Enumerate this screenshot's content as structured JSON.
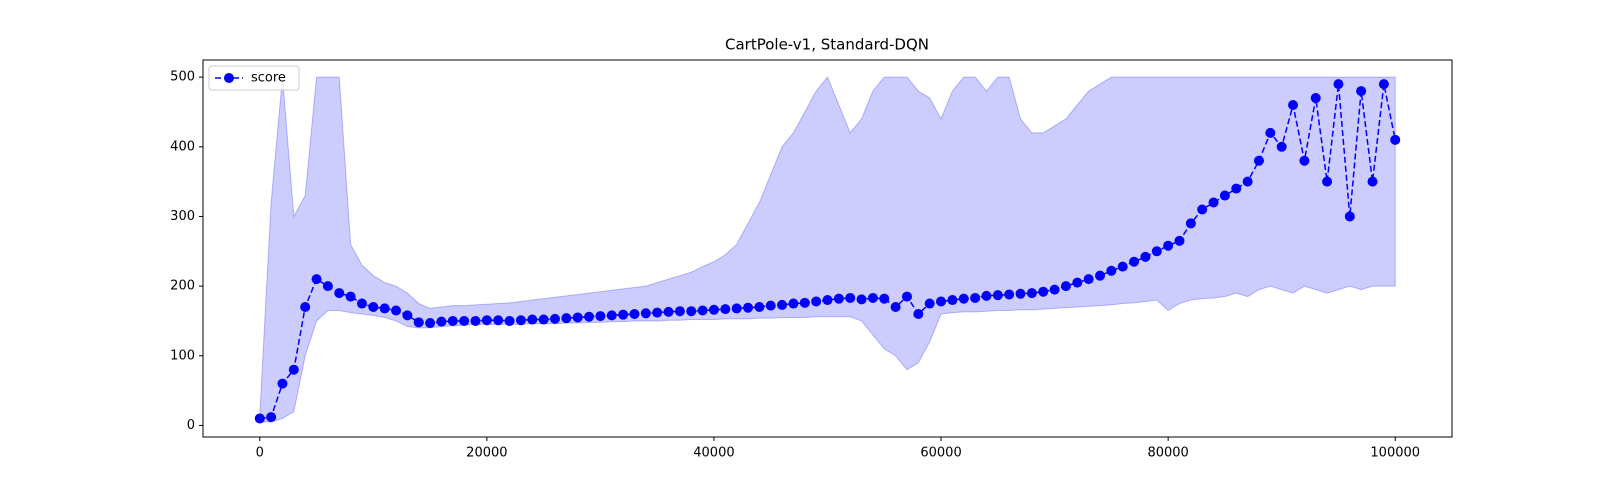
{
  "chart_data": {
    "type": "line",
    "title": "CartPole-v1, Standard-DQN",
    "x": [
      0,
      1000,
      2000,
      3000,
      4000,
      5000,
      6000,
      7000,
      8000,
      9000,
      10000,
      11000,
      12000,
      13000,
      14000,
      15000,
      16000,
      17000,
      18000,
      19000,
      20000,
      21000,
      22000,
      23000,
      24000,
      25000,
      26000,
      27000,
      28000,
      29000,
      30000,
      31000,
      32000,
      33000,
      34000,
      35000,
      36000,
      37000,
      38000,
      39000,
      40000,
      41000,
      42000,
      43000,
      44000,
      45000,
      46000,
      47000,
      48000,
      49000,
      50000,
      51000,
      52000,
      53000,
      54000,
      55000,
      56000,
      57000,
      58000,
      59000,
      60000,
      61000,
      62000,
      63000,
      64000,
      65000,
      66000,
      67000,
      68000,
      69000,
      70000,
      71000,
      72000,
      73000,
      74000,
      75000,
      76000,
      77000,
      78000,
      79000,
      80000,
      81000,
      82000,
      83000,
      84000,
      85000,
      86000,
      87000,
      88000,
      89000,
      90000,
      91000,
      92000,
      93000,
      94000,
      95000,
      96000,
      97000,
      98000,
      99000,
      100000
    ],
    "series": [
      {
        "name": "score",
        "color": "#0000ff",
        "values": [
          10,
          12,
          60,
          80,
          170,
          210,
          200,
          190,
          185,
          175,
          170,
          168,
          165,
          158,
          148,
          147,
          149,
          150,
          150,
          150,
          151,
          151,
          150,
          151,
          152,
          152,
          153,
          154,
          155,
          156,
          157,
          158,
          159,
          160,
          161,
          162,
          163,
          164,
          164,
          165,
          166,
          167,
          168,
          169,
          170,
          172,
          173,
          175,
          176,
          178,
          180,
          182,
          183,
          181,
          183,
          182,
          170,
          185,
          160,
          175,
          178,
          180,
          182,
          183,
          186,
          187,
          188,
          189,
          190,
          192,
          195,
          200,
          205,
          210,
          215,
          222,
          228,
          235,
          242,
          250,
          258,
          265,
          290,
          310,
          320,
          330,
          340,
          350,
          380,
          420,
          400,
          460,
          380,
          470,
          350,
          490,
          300,
          480,
          350,
          490,
          410
        ]
      }
    ],
    "band": {
      "color": "#0000ff",
      "lower": [
        5,
        5,
        10,
        20,
        100,
        150,
        165,
        165,
        162,
        160,
        158,
        155,
        150,
        142,
        140,
        140,
        142,
        143,
        144,
        145,
        145,
        145,
        145,
        145,
        146,
        146,
        146,
        147,
        147,
        148,
        148,
        149,
        149,
        150,
        150,
        150,
        151,
        151,
        152,
        152,
        152,
        153,
        153,
        153,
        154,
        154,
        155,
        155,
        155,
        156,
        156,
        156,
        156,
        150,
        130,
        110,
        100,
        80,
        90,
        120,
        160,
        162,
        163,
        163,
        164,
        165,
        165,
        166,
        166,
        167,
        168,
        169,
        170,
        171,
        172,
        173,
        175,
        176,
        178,
        180,
        165,
        175,
        180,
        182,
        183,
        185,
        190,
        185,
        195,
        200,
        195,
        190,
        200,
        195,
        190,
        195,
        200,
        195,
        200,
        200,
        200
      ],
      "upper": [
        15,
        320,
        500,
        300,
        330,
        500,
        500,
        500,
        260,
        230,
        215,
        205,
        200,
        190,
        175,
        168,
        170,
        172,
        172,
        173,
        174,
        175,
        176,
        178,
        180,
        182,
        184,
        186,
        188,
        190,
        192,
        194,
        196,
        198,
        200,
        205,
        210,
        215,
        220,
        228,
        235,
        245,
        260,
        290,
        320,
        360,
        400,
        420,
        450,
        480,
        500,
        460,
        420,
        440,
        480,
        500,
        500,
        500,
        480,
        470,
        440,
        480,
        500,
        500,
        480,
        500,
        500,
        440,
        420,
        420,
        430,
        440,
        460,
        480,
        490,
        500,
        500,
        500,
        500,
        500,
        500,
        500,
        500,
        500,
        500,
        500,
        500,
        500,
        500,
        500,
        500,
        500,
        500,
        500,
        500,
        500,
        500,
        500,
        500,
        500,
        500
      ]
    },
    "xlim": [
      -5000,
      105000
    ],
    "ylim": [
      -16.6,
      524.6
    ],
    "xticks": [
      0,
      20000,
      40000,
      60000,
      80000,
      100000
    ],
    "yticks": [
      0,
      100,
      200,
      300,
      400,
      500
    ],
    "legend": "upper left"
  }
}
